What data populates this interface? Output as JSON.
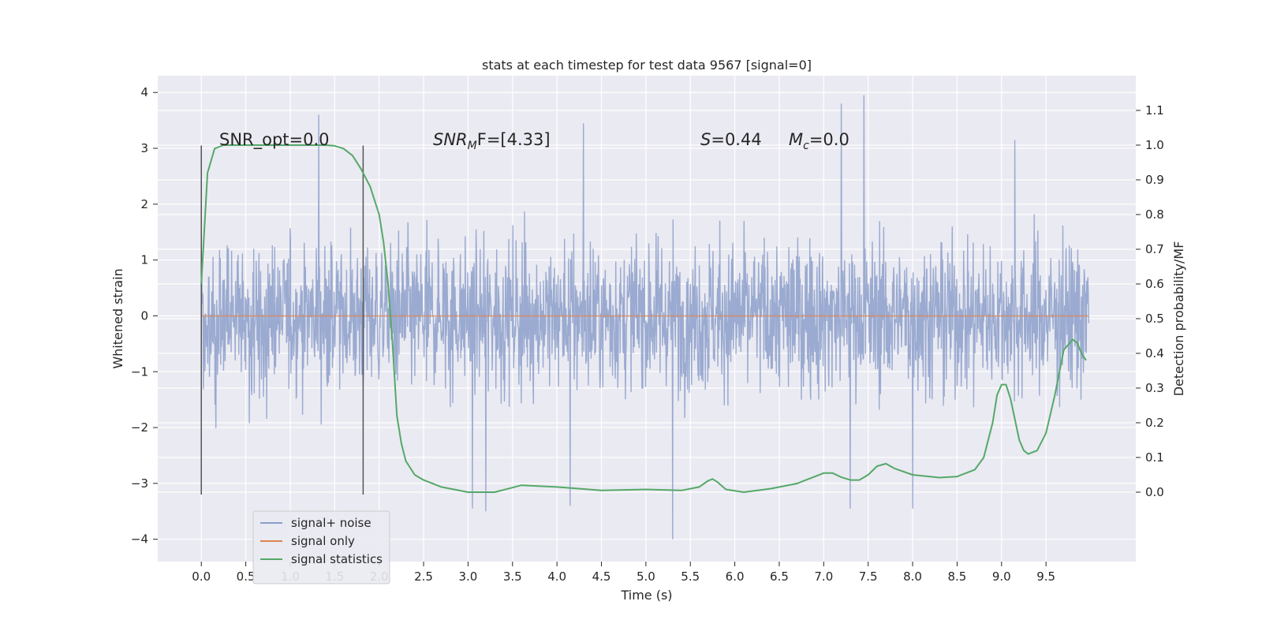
{
  "chart_data": {
    "type": "line",
    "title": "stats at each timestep for test data 9567 [signal=0]",
    "xlabel": "Time (s)",
    "ylabel": "Whitened strain",
    "ylabel_right": "Detection probability/MF",
    "xlim": [
      -0.49,
      10.51
    ],
    "ylim": [
      -4.4,
      4.3
    ],
    "ylim_right": [
      -0.2,
      1.2
    ],
    "xticks": [
      "0.0",
      "0.5",
      "1.0",
      "1.5",
      "2.0",
      "2.5",
      "3.0",
      "3.5",
      "4.0",
      "4.5",
      "5.0",
      "5.5",
      "6.0",
      "6.5",
      "7.0",
      "7.5",
      "8.0",
      "8.5",
      "9.0",
      "9.5"
    ],
    "yticks": [
      "4",
      "3",
      "2",
      "1",
      "0",
      "−1",
      "−2",
      "−3",
      "−4"
    ],
    "yticks_right": [
      "1.1",
      "1.0",
      "0.9",
      "0.8",
      "0.7",
      "0.6",
      "0.5",
      "0.4",
      "0.3",
      "0.2",
      "0.1",
      "0.0"
    ],
    "grid": true,
    "legend_position": "lower-left",
    "annotations": {
      "snr_opt": "SNR_opt=0.0",
      "snr_mf_base": "SNR",
      "snr_mf_sub": "M",
      "snr_mf_rest": "F=[4.33]",
      "s_sym": "S",
      "s_val": "=0.44",
      "mc_sym": "M",
      "mc_sub": "c",
      "mc_val": "=0.0"
    },
    "vertical_markers_x": [
      0.0,
      1.82
    ],
    "vertical_marker_range": [
      -3.2,
      3.05
    ],
    "series": [
      {
        "name": "signal+ noise",
        "axis": "left",
        "color": "#8c9fca",
        "description_values": {
          "x_range": [
            0.0,
            9.98
          ],
          "typical_envelope": [
            -2.0,
            2.0
          ],
          "peak_points": [
            {
              "x": 1.32,
              "y": 3.6
            },
            {
              "x": 4.3,
              "y": 3.45
            },
            {
              "x": 7.2,
              "y": 3.8
            },
            {
              "x": 7.45,
              "y": 3.95
            },
            {
              "x": 9.15,
              "y": 3.15
            },
            {
              "x": 5.3,
              "y": -4.0
            },
            {
              "x": 3.2,
              "y": -3.5
            },
            {
              "x": 3.05,
              "y": -3.45
            },
            {
              "x": 4.15,
              "y": -3.4
            },
            {
              "x": 7.3,
              "y": -3.45
            },
            {
              "x": 8.0,
              "y": -3.45
            }
          ]
        }
      },
      {
        "name": "signal only",
        "axis": "left",
        "color": "#dd8452",
        "x": [
          0.0,
          9.98
        ],
        "y": [
          0.0,
          0.0
        ]
      },
      {
        "name": "signal statistics",
        "axis": "right",
        "color": "#55a868",
        "x": [
          0.0,
          0.07,
          0.15,
          0.25,
          0.4,
          0.6,
          0.8,
          1.0,
          1.2,
          1.4,
          1.5,
          1.6,
          1.7,
          1.8,
          1.9,
          2.0,
          2.05,
          2.1,
          2.15,
          2.2,
          2.25,
          2.3,
          2.4,
          2.5,
          2.7,
          3.0,
          3.3,
          3.6,
          4.0,
          4.5,
          5.0,
          5.4,
          5.6,
          5.7,
          5.75,
          5.8,
          5.9,
          6.1,
          6.4,
          6.7,
          6.9,
          7.0,
          7.1,
          7.2,
          7.3,
          7.4,
          7.5,
          7.6,
          7.7,
          7.8,
          8.0,
          8.3,
          8.5,
          8.7,
          8.8,
          8.9,
          8.95,
          9.0,
          9.05,
          9.1,
          9.15,
          9.2,
          9.25,
          9.3,
          9.4,
          9.5,
          9.6,
          9.7,
          9.8,
          9.85,
          9.9,
          9.95
        ],
        "y": [
          0.6,
          0.92,
          0.99,
          1.0,
          1.0,
          1.0,
          1.0,
          1.0,
          1.0,
          1.0,
          0.998,
          0.99,
          0.97,
          0.93,
          0.88,
          0.8,
          0.72,
          0.6,
          0.43,
          0.22,
          0.14,
          0.09,
          0.05,
          0.035,
          0.015,
          0.0,
          0.0,
          0.02,
          0.015,
          0.005,
          0.008,
          0.005,
          0.015,
          0.033,
          0.038,
          0.03,
          0.008,
          0.0,
          0.01,
          0.025,
          0.045,
          0.055,
          0.055,
          0.043,
          0.035,
          0.035,
          0.05,
          0.075,
          0.082,
          0.068,
          0.05,
          0.042,
          0.045,
          0.065,
          0.1,
          0.2,
          0.28,
          0.31,
          0.31,
          0.27,
          0.21,
          0.15,
          0.12,
          0.11,
          0.12,
          0.17,
          0.28,
          0.41,
          0.44,
          0.43,
          0.4,
          0.38
        ]
      }
    ]
  }
}
